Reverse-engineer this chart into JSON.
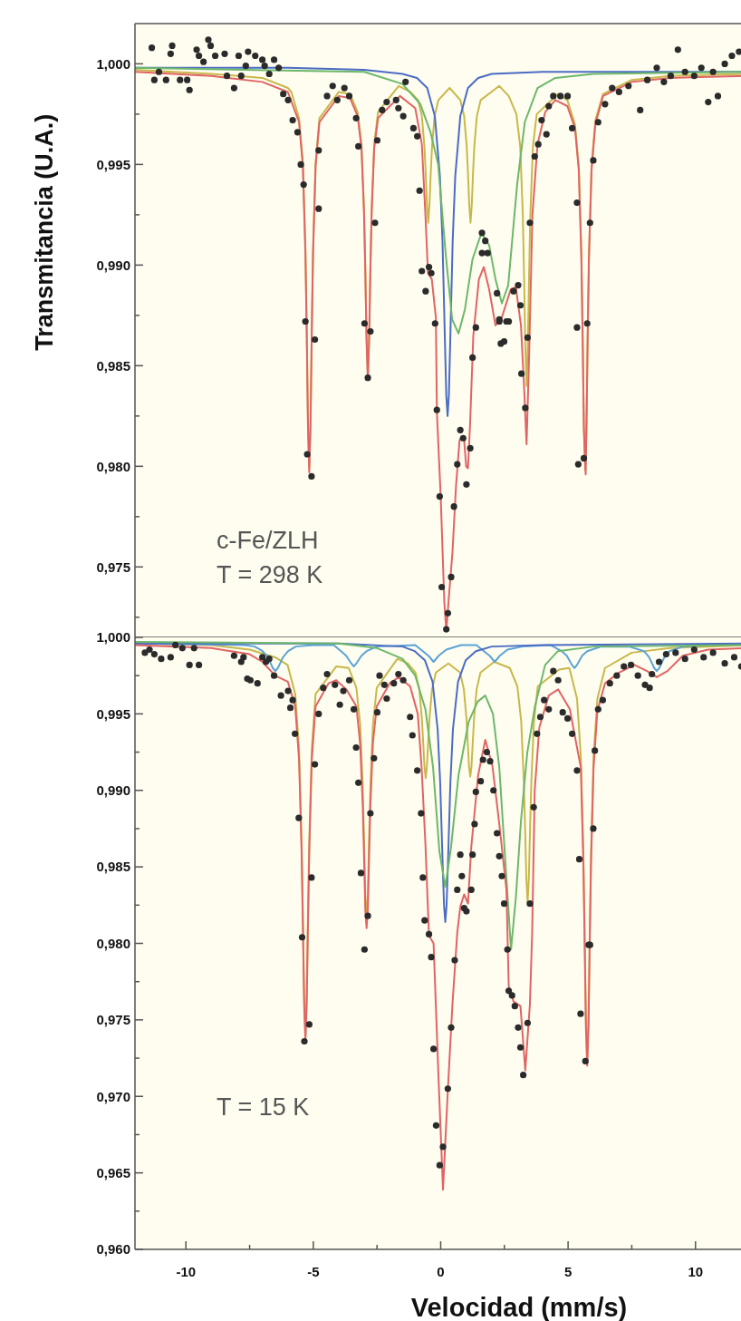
{
  "chart_data": [
    {
      "type": "line",
      "ylabel": "Transmitancia (U.A.)",
      "annotations": [
        "c-Fe/ZLH",
        "T = 298 K"
      ],
      "xlim": [
        -12,
        12
      ],
      "ylim": [
        0.9715,
        1.002
      ],
      "yticks": [
        {
          "value": 1.0,
          "label": "1,000"
        },
        {
          "value": 0.9975,
          "label": null
        },
        {
          "value": 0.995,
          "label": "0,995"
        },
        {
          "value": 0.9925,
          "label": null
        },
        {
          "value": 0.99,
          "label": "0,990"
        },
        {
          "value": 0.9875,
          "label": null
        },
        {
          "value": 0.985,
          "label": "0,985"
        },
        {
          "value": 0.9825,
          "label": null
        },
        {
          "value": 0.98,
          "label": "0,980"
        },
        {
          "value": 0.9775,
          "label": null
        },
        {
          "value": 0.975,
          "label": "0,975"
        },
        {
          "value": 0.9725,
          "label": null
        }
      ],
      "tick_labels": "y",
      "series": [
        {
          "type": "line",
          "color": "#c8b84a",
          "x": [
            -12,
            -9,
            -7,
            -6,
            -5.86,
            -5.56,
            -5.41,
            -5.31,
            -5.26,
            -5.21,
            -5.16,
            -5.11,
            -5.06,
            -5.01,
            -4.91,
            -4.76,
            -4.0,
            -3.56,
            -3.26,
            -3.11,
            -3.01,
            -2.96,
            -2.91,
            -2.86,
            -2.81,
            -2.76,
            -2.71,
            -2.61,
            -2.46,
            -1.65,
            -1.19,
            -0.89,
            -0.74,
            -0.64,
            -0.59,
            -0.54,
            -0.49,
            -0.44,
            -0.39,
            -0.34,
            -0.24,
            -0.09,
            0.35,
            0.77,
            0.92,
            1.02,
            1.07,
            1.12,
            1.17,
            1.22,
            1.27,
            1.32,
            1.42,
            1.57,
            2.3,
            2.67,
            2.97,
            3.12,
            3.22,
            3.27,
            3.32,
            3.37,
            3.42,
            3.47,
            3.52,
            3.62,
            3.77,
            4.6,
            4.97,
            5.27,
            5.42,
            5.52,
            5.57,
            5.62,
            5.67,
            5.72,
            5.77,
            5.82,
            5.92,
            6.07,
            6.37,
            7.5,
            9,
            12
          ],
          "values": [
            0.9997,
            0.9995,
            0.9993,
            0.9988,
            0.9986,
            0.9973,
            0.9951,
            0.9908,
            0.9869,
            0.9822,
            0.9799,
            0.9822,
            0.9869,
            0.9908,
            0.9951,
            0.9973,
            0.9986,
            0.9985,
            0.9976,
            0.996,
            0.9928,
            0.9899,
            0.9864,
            0.9845,
            0.9864,
            0.9899,
            0.9928,
            0.996,
            0.9976,
            0.9989,
            0.9986,
            0.9982,
            0.9974,
            0.9959,
            0.9946,
            0.993,
            0.9921,
            0.993,
            0.9946,
            0.9959,
            0.9974,
            0.9982,
            0.9988,
            0.9982,
            0.9974,
            0.9959,
            0.9946,
            0.993,
            0.9921,
            0.993,
            0.9946,
            0.9959,
            0.9974,
            0.9982,
            0.9989,
            0.9984,
            0.9975,
            0.9959,
            0.9926,
            0.9896,
            0.986,
            0.984,
            0.986,
            0.9896,
            0.9926,
            0.9959,
            0.9975,
            0.9985,
            0.9982,
            0.997,
            0.9949,
            0.9906,
            0.9867,
            0.982,
            0.9798,
            0.982,
            0.9867,
            0.9906,
            0.9949,
            0.9972,
            0.9985,
            0.9992,
            0.9994,
            0.9995
          ]
        },
        {
          "type": "line",
          "color": "#4b6cc4",
          "x": [
            -12,
            -6,
            -3,
            -1.5,
            -0.93,
            -0.53,
            -0.23,
            -0.03,
            0.07,
            0.17,
            0.22,
            0.27,
            0.32,
            0.37,
            0.47,
            0.57,
            0.77,
            1.07,
            1.47,
            2,
            4,
            8,
            12
          ],
          "values": [
            0.9998,
            0.9998,
            0.9997,
            0.9995,
            0.9993,
            0.9988,
            0.9974,
            0.9944,
            0.9912,
            0.986,
            0.9835,
            0.9825,
            0.9835,
            0.986,
            0.9912,
            0.9944,
            0.9974,
            0.9988,
            0.9993,
            0.9995,
            0.9996,
            0.9996,
            0.9996
          ]
        },
        {
          "type": "line",
          "color": "#6cb86a",
          "x": [
            -12,
            -3,
            -1.5,
            -0.8,
            -0.4,
            -0.1,
            0.2,
            0.45,
            0.7,
            0.95,
            1.25,
            1.6,
            1.9,
            2.15,
            2.4,
            2.65,
            3.0,
            3.3,
            3.8,
            4.5,
            6,
            12
          ],
          "values": [
            0.9998,
            0.9996,
            0.999,
            0.998,
            0.9966,
            0.995,
            0.9905,
            0.9873,
            0.9866,
            0.9878,
            0.9903,
            0.9916,
            0.991,
            0.9893,
            0.9881,
            0.989,
            0.994,
            0.9971,
            0.9988,
            0.9993,
            0.9995,
            0.9996
          ]
        },
        {
          "type": "line",
          "color": "#e06464",
          "x": [
            -12,
            -9,
            -7,
            -6,
            -5.56,
            -5.41,
            -5.31,
            -5.26,
            -5.21,
            -5.16,
            -5.11,
            -5.06,
            -5.01,
            -4.91,
            -4.76,
            -4.0,
            -3.56,
            -3.26,
            -3.11,
            -3.01,
            -2.96,
            -2.91,
            -2.86,
            -2.81,
            -2.76,
            -2.71,
            -2.61,
            -2.46,
            -1.6,
            -1.0,
            -0.74,
            -0.6,
            -0.5,
            -0.35,
            -0.19,
            -0.15,
            0.0,
            0.14,
            0.22,
            0.32,
            0.46,
            0.6,
            0.74,
            0.85,
            0.92,
            1.0,
            1.07,
            1.15,
            1.28,
            1.5,
            1.69,
            1.9,
            2.15,
            2.4,
            2.75,
            2.95,
            3.15,
            3.27,
            3.37,
            3.47,
            3.6,
            3.8,
            4.1,
            4.5,
            4.97,
            5.27,
            5.42,
            5.52,
            5.57,
            5.62,
            5.69,
            5.72,
            5.77,
            5.82,
            5.92,
            6.07,
            6.37,
            7.5,
            9,
            12
          ],
          "values": [
            0.9996,
            0.9994,
            0.9991,
            0.9986,
            0.9971,
            0.9949,
            0.9906,
            0.9867,
            0.982,
            0.9797,
            0.982,
            0.9867,
            0.9906,
            0.9949,
            0.9971,
            0.9984,
            0.9983,
            0.9974,
            0.9958,
            0.9926,
            0.9897,
            0.9862,
            0.9843,
            0.9862,
            0.9897,
            0.9926,
            0.9958,
            0.9973,
            0.9984,
            0.9978,
            0.996,
            0.9925,
            0.9896,
            0.9893,
            0.9874,
            0.9827,
            0.9785,
            0.9733,
            0.9718,
            0.9735,
            0.9757,
            0.979,
            0.9813,
            0.9815,
            0.9813,
            0.98,
            0.9799,
            0.982,
            0.9865,
            0.9893,
            0.9899,
            0.9888,
            0.987,
            0.9874,
            0.9888,
            0.9889,
            0.987,
            0.984,
            0.9811,
            0.9855,
            0.9925,
            0.996,
            0.9976,
            0.9982,
            0.9979,
            0.9968,
            0.9947,
            0.9904,
            0.9865,
            0.9818,
            0.9796,
            0.9818,
            0.9865,
            0.9904,
            0.9947,
            0.997,
            0.9984,
            0.9991,
            0.9993,
            0.9994
          ]
        },
        {
          "type": "scatter",
          "color": "#2b2b2b",
          "marker": "circle",
          "x": [
            -11.34,
            -11.06,
            -10.54,
            -10.6,
            -11.24,
            -10.78,
            -10.23,
            -9.86,
            -9.95,
            -9.58,
            -9.49,
            -9.12,
            -9.03,
            -9.31,
            -8.85,
            -8.48,
            -8.39,
            -8.11,
            -7.93,
            -7.83,
            -7.65,
            -7.56,
            -7.28,
            -7.0,
            -6.91,
            -6.54,
            -6.36,
            -6.73,
            -6.18,
            -5.99,
            -5.81,
            -5.62,
            -5.49,
            -5.38,
            -5.31,
            -4.94,
            -5.24,
            -5.07,
            -4.79,
            -4.79,
            -4.46,
            -4.24,
            -4.06,
            -3.78,
            -3.59,
            -3.32,
            -3.23,
            -2.58,
            -2.99,
            -2.76,
            -2.86,
            -2.49,
            -2.3,
            -2.12,
            -1.75,
            -1.66,
            -1.38,
            -1.47,
            -1.07,
            -0.92,
            -0.83,
            -0.74,
            -0.59,
            -0.46,
            -0.37,
            -0.22,
            -0.15,
            -0.04,
            0.04,
            0.28,
            0.22,
            0.41,
            0.52,
            0.65,
            0.77,
            0.88,
            1.01,
            1.16,
            1.25,
            1.38,
            2.36,
            2.49,
            2.3,
            2.67,
            3.17,
            3.32,
            3.41,
            5.35,
            5.75,
            5.4,
            5.62,
            1.62,
            1.75,
            1.84,
            1.62,
            2.21,
            2.3,
            2.58,
            2.86,
            3.04,
            3.13,
            3.5,
            3.69,
            3.83,
            3.96,
            4.15,
            4.24,
            4.42,
            4.7,
            4.98,
            5.16,
            5.35,
            5.86,
            5.99,
            6.18,
            6.45,
            6.73,
            7.0,
            7.37,
            7.83,
            8.11,
            8.48,
            8.76,
            9.03,
            9.31,
            9.59,
            9.95,
            10.23,
            10.5,
            10.69,
            10.88,
            11.15,
            11.43,
            11.71
          ],
          "values": [
            1.0008,
            0.9996,
            1.0009,
            1.0005,
            0.9992,
            0.9992,
            0.9992,
            0.9987,
            0.9992,
            1.0007,
            1.0004,
            1.0012,
            1.0009,
            1.0001,
            1.0004,
            1.0005,
            0.9994,
            0.9988,
            1.0004,
            0.9994,
            0.9999,
            1.0006,
            1.0004,
            1.0002,
            0.9999,
            1.0002,
            0.9998,
            0.9995,
            0.9985,
            0.9982,
            0.9972,
            0.9966,
            0.995,
            0.994,
            0.9872,
            0.9863,
            0.9806,
            0.9795,
            0.9957,
            0.9928,
            0.9984,
            0.9989,
            0.9982,
            0.9988,
            0.9984,
            0.9973,
            0.9959,
            0.9921,
            0.9871,
            0.9867,
            0.9844,
            0.9962,
            0.9977,
            0.9981,
            0.9982,
            0.9978,
            0.9991,
            0.9974,
            0.9968,
            0.9964,
            0.9937,
            0.9897,
            0.9887,
            0.9899,
            0.9896,
            0.9871,
            0.9828,
            0.9785,
            0.974,
            0.9727,
            0.9719,
            0.9745,
            0.978,
            0.9801,
            0.9818,
            0.9814,
            0.9791,
            0.9809,
            0.9854,
            0.9869,
            0.9861,
            0.9862,
            0.9872,
            0.9872,
            0.9846,
            0.9829,
            0.9864,
            0.9869,
            0.9871,
            0.9801,
            0.9804,
            0.9916,
            0.9912,
            0.9906,
            0.9906,
            0.9886,
            0.9873,
            0.9872,
            0.9887,
            0.989,
            0.988,
            0.9921,
            0.9954,
            0.996,
            0.9972,
            0.9965,
            0.9979,
            0.9984,
            0.9984,
            0.9984,
            0.9968,
            0.9931,
            0.9921,
            0.9952,
            0.9971,
            0.998,
            0.9988,
            0.9986,
            0.9989,
            0.9977,
            0.9992,
            0.9998,
            0.9991,
            0.9994,
            1.0007,
            0.9996,
            0.9994,
            0.9998,
            0.9981,
            0.9996,
            0.9984,
            1.0,
            1.0004,
            1.0006
          ]
        }
      ]
    },
    {
      "type": "line",
      "xlabel": "Velocidad (mm/s)",
      "annotations": [
        "T = 15 K"
      ],
      "xlim": [
        -12,
        12
      ],
      "ylim": [
        0.96,
        1.0
      ],
      "xticks": [
        -10,
        {
          "value": -7.5,
          "label": null
        },
        -5,
        {
          "value": -2.5,
          "label": null
        },
        0,
        {
          "value": 2.5,
          "label": null
        },
        5,
        {
          "value": 7.5,
          "label": null
        },
        10
      ],
      "yticks": [
        {
          "value": 1.0,
          "label": "1,000"
        },
        {
          "value": 0.9975,
          "label": null
        },
        {
          "value": 0.995,
          "label": "0,995"
        },
        {
          "value": 0.9925,
          "label": null
        },
        {
          "value": 0.99,
          "label": "0,990"
        },
        {
          "value": 0.9875,
          "label": null
        },
        {
          "value": 0.985,
          "label": "0,985"
        },
        {
          "value": 0.9825,
          "label": null
        },
        {
          "value": 0.98,
          "label": "0,980"
        },
        {
          "value": 0.9775,
          "label": null
        },
        {
          "value": 0.975,
          "label": "0,975"
        },
        {
          "value": 0.9725,
          "label": null
        },
        {
          "value": 0.97,
          "label": "0,970"
        },
        {
          "value": 0.9675,
          "label": null
        },
        {
          "value": 0.965,
          "label": "0,965"
        },
        {
          "value": 0.9625,
          "label": null
        },
        {
          "value": 0.96,
          "label": "0,960"
        }
      ],
      "series": [
        {
          "type": "line",
          "color": "#c8b84a",
          "x": [
            -12,
            -9,
            -7.5,
            -6.5,
            -6.01,
            -5.71,
            -5.56,
            -5.46,
            -5.41,
            -5.36,
            -5.31,
            -5.26,
            -5.21,
            -5.16,
            -5.06,
            -4.91,
            -4.1,
            -3.61,
            -3.31,
            -3.16,
            -3.06,
            -3.01,
            -2.96,
            -2.91,
            -2.86,
            -2.81,
            -2.76,
            -2.66,
            -2.51,
            -1.7,
            -1.29,
            -0.99,
            -0.84,
            -0.74,
            -0.69,
            -0.64,
            -0.59,
            -0.54,
            -0.49,
            -0.44,
            -0.34,
            -0.19,
            0.3,
            0.76,
            0.91,
            1.01,
            1.06,
            1.11,
            1.16,
            1.21,
            1.26,
            1.31,
            1.41,
            1.56,
            2.1,
            2.71,
            3.01,
            3.16,
            3.26,
            3.31,
            3.36,
            3.41,
            3.46,
            3.51,
            3.56,
            3.66,
            3.81,
            4.65,
            5.05,
            5.35,
            5.5,
            5.6,
            5.65,
            5.7,
            5.75,
            5.8,
            5.85,
            5.9,
            6.0,
            6.15,
            6.45,
            7.5,
            9,
            12
          ],
          "values": [
            0.9996,
            0.9995,
            0.9992,
            0.9987,
            0.9982,
            0.9963,
            0.9927,
            0.9866,
            0.9818,
            0.9765,
            0.974,
            0.9765,
            0.9818,
            0.9866,
            0.9927,
            0.9963,
            0.9981,
            0.998,
            0.9967,
            0.9943,
            0.9902,
            0.9869,
            0.9832,
            0.9815,
            0.9832,
            0.9869,
            0.9902,
            0.9943,
            0.9967,
            0.9986,
            0.9983,
            0.9977,
            0.9966,
            0.9947,
            0.9932,
            0.9916,
            0.9908,
            0.9916,
            0.9932,
            0.9947,
            0.9966,
            0.9977,
            0.9983,
            0.9977,
            0.9966,
            0.9947,
            0.9932,
            0.9916,
            0.9909,
            0.9916,
            0.9932,
            0.9947,
            0.9966,
            0.9977,
            0.9984,
            0.998,
            0.9968,
            0.9945,
            0.9907,
            0.9877,
            0.9843,
            0.9827,
            0.9843,
            0.9877,
            0.9907,
            0.9945,
            0.9968,
            0.9979,
            0.998,
            0.996,
            0.9922,
            0.9858,
            0.9806,
            0.975,
            0.9723,
            0.975,
            0.9806,
            0.9858,
            0.9922,
            0.996,
            0.998,
            0.999,
            0.9993,
            0.9995
          ]
        },
        {
          "type": "line",
          "color": "#5ba3d6",
          "x": [
            -12,
            -7.7,
            -7.3,
            -6.99,
            -6.79,
            -6.59,
            -6.49,
            -6.39,
            -6.19,
            -5.99,
            -5.69,
            -5.0,
            -4.2,
            -3.91,
            -3.71,
            -3.51,
            -3.41,
            -3.31,
            -3.11,
            -2.91,
            -2.5,
            -1.0,
            -0.78,
            -0.48,
            -0.28,
            -0.08,
            0.22,
            0.8,
            1.4,
            1.62,
            1.92,
            2.12,
            2.32,
            2.62,
            3.2,
            4.3,
            4.75,
            4.95,
            5.15,
            5.25,
            5.35,
            5.55,
            5.75,
            6.3,
            7.4,
            7.98,
            8.18,
            8.38,
            8.48,
            8.58,
            8.78,
            8.98,
            9.5,
            12
          ],
          "values": [
            0.9996,
            0.9995,
            0.9994,
            0.9991,
            0.9987,
            0.998,
            0.9978,
            0.998,
            0.9987,
            0.9991,
            0.9994,
            0.9995,
            0.9995,
            0.9991,
            0.9988,
            0.9983,
            0.9981,
            0.9983,
            0.9988,
            0.9991,
            0.9994,
            0.9995,
            0.9992,
            0.9988,
            0.9984,
            0.9988,
            0.9992,
            0.9995,
            0.9995,
            0.9992,
            0.9988,
            0.9984,
            0.9988,
            0.9992,
            0.9994,
            0.9995,
            0.9991,
            0.9988,
            0.9982,
            0.998,
            0.9982,
            0.9988,
            0.9991,
            0.9994,
            0.9994,
            0.9991,
            0.9987,
            0.998,
            0.9978,
            0.998,
            0.9987,
            0.9991,
            0.9994,
            0.9996
          ]
        },
        {
          "type": "line",
          "color": "#4b6cc4",
          "x": [
            -12,
            -4,
            -1.5,
            -1.02,
            -0.62,
            -0.32,
            -0.12,
            -0.02,
            0.08,
            0.13,
            0.18,
            0.23,
            0.28,
            0.38,
            0.48,
            0.68,
            0.98,
            1.38,
            2,
            4,
            12
          ],
          "values": [
            0.9996,
            0.9996,
            0.9994,
            0.9991,
            0.9985,
            0.9971,
            0.994,
            0.9905,
            0.985,
            0.9825,
            0.9814,
            0.9825,
            0.985,
            0.9905,
            0.994,
            0.9971,
            0.9985,
            0.9991,
            0.9994,
            0.9995,
            0.9996
          ]
        },
        {
          "type": "line",
          "color": "#6cb86a",
          "x": [
            -12,
            -4,
            -2.5,
            -1.5,
            -1.0,
            -0.6,
            -0.3,
            -0.05,
            0.18,
            0.4,
            0.7,
            1.1,
            1.45,
            1.75,
            2.05,
            2.3,
            2.55,
            2.76,
            2.95,
            3.15,
            3.4,
            3.7,
            4.1,
            4.6,
            6,
            12
          ],
          "values": [
            0.9997,
            0.9996,
            0.9993,
            0.9986,
            0.9975,
            0.9953,
            0.9915,
            0.986,
            0.9837,
            0.9862,
            0.991,
            0.9945,
            0.9958,
            0.9962,
            0.995,
            0.9915,
            0.985,
            0.9796,
            0.983,
            0.988,
            0.9925,
            0.9955,
            0.9982,
            0.9991,
            0.9994,
            0.9995
          ]
        },
        {
          "type": "line",
          "color": "#e06464",
          "x": [
            -12,
            -9,
            -7.5,
            -7,
            -6.5,
            -6.0,
            -5.71,
            -5.56,
            -5.46,
            -5.41,
            -5.36,
            -5.31,
            -5.26,
            -5.21,
            -5.16,
            -5.06,
            -4.91,
            -4.4,
            -4.1,
            -3.7,
            -3.31,
            -3.16,
            -3.06,
            -3.01,
            -2.96,
            -2.91,
            -2.86,
            -2.81,
            -2.76,
            -2.66,
            -2.51,
            -2.0,
            -1.65,
            -1.2,
            -0.9,
            -0.75,
            -0.6,
            -0.46,
            -0.28,
            -0.09,
            0.09,
            0.28,
            0.46,
            0.65,
            0.77,
            0.92,
            1.07,
            1.2,
            1.47,
            1.75,
            2.03,
            2.3,
            2.58,
            2.67,
            2.86,
            3.13,
            3.32,
            3.5,
            3.59,
            3.69,
            3.87,
            4.24,
            4.61,
            5.07,
            5.35,
            5.5,
            5.6,
            5.65,
            5.7,
            5.75,
            5.8,
            5.85,
            5.9,
            6.0,
            6.15,
            6.45,
            7.0,
            7.6,
            8.1,
            8.48,
            8.9,
            9.5,
            10.5,
            12
          ],
          "values": [
            0.9995,
            0.9993,
            0.9989,
            0.9984,
            0.9975,
            0.9971,
            0.9955,
            0.992,
            0.986,
            0.9812,
            0.976,
            0.9736,
            0.976,
            0.9812,
            0.986,
            0.992,
            0.9955,
            0.997,
            0.9972,
            0.9966,
            0.9955,
            0.993,
            0.989,
            0.9857,
            0.9822,
            0.981,
            0.9822,
            0.9857,
            0.989,
            0.9931,
            0.9955,
            0.997,
            0.9974,
            0.9968,
            0.995,
            0.9915,
            0.9865,
            0.9805,
            0.98,
            0.9714,
            0.9639,
            0.9704,
            0.976,
            0.9807,
            0.9824,
            0.9832,
            0.9826,
            0.9863,
            0.991,
            0.9933,
            0.9916,
            0.9878,
            0.9835,
            0.9772,
            0.9762,
            0.9759,
            0.9717,
            0.976,
            0.9807,
            0.99,
            0.9941,
            0.9962,
            0.9966,
            0.9953,
            0.9928,
            0.9915,
            0.9852,
            0.98,
            0.9745,
            0.972,
            0.9745,
            0.98,
            0.9852,
            0.9915,
            0.9952,
            0.997,
            0.9977,
            0.9982,
            0.9978,
            0.9974,
            0.9978,
            0.9988,
            0.9992,
            0.9993
          ]
        },
        {
          "type": "scatter",
          "color": "#2b2b2b",
          "marker": "circle",
          "x": [
            -11.61,
            -11.43,
            -11.24,
            -10.97,
            -10.6,
            -10.41,
            -10.14,
            -9.86,
            -9.68,
            -9.49,
            -8.11,
            -7.83,
            -7.74,
            -7.59,
            -7.47,
            -7.19,
            -7.0,
            -6.86,
            -6.73,
            -6.54,
            -6.27,
            -5.99,
            -5.9,
            -5.81,
            -5.72,
            -5.57,
            -5.44,
            -5.16,
            -5.35,
            -5.07,
            -4.94,
            -4.79,
            -4.61,
            -4.46,
            -4.15,
            -3.96,
            -3.82,
            -3.59,
            -3.41,
            -3.32,
            -3.23,
            -3.13,
            -2.99,
            -2.86,
            -2.76,
            -2.62,
            -2.49,
            -2.4,
            -2.21,
            -2.12,
            -1.84,
            -1.66,
            -1.47,
            -1.2,
            -1.11,
            -0.92,
            -0.77,
            -0.7,
            -0.63,
            -0.46,
            -0.37,
            -0.28,
            -0.18,
            -0.04,
            0.09,
            0.28,
            0.41,
            0.55,
            0.65,
            0.77,
            0.83,
            0.92,
            1.01,
            1.2,
            1.25,
            1.33,
            1.38,
            1.57,
            1.66,
            1.81,
            1.94,
            2.07,
            2.21,
            2.3,
            2.4,
            2.49,
            2.62,
            2.67,
            2.8,
            2.91,
            3.04,
            3.13,
            3.24,
            3.41,
            3.5,
            3.65,
            3.78,
            3.91,
            4.06,
            4.24,
            4.42,
            4.61,
            4.79,
            4.98,
            5.16,
            5.35,
            5.44,
            5.81,
            5.49,
            5.86,
            5.68,
            5.99,
            6.05,
            6.18,
            6.36,
            6.64,
            6.91,
            7.19,
            7.47,
            7.74,
            8.02,
            8.2,
            8.29,
            8.57,
            8.85,
            9.22,
            9.59,
            9.95,
            10.32,
            10.69,
            11.15,
            11.52,
            11.8
          ],
          "values": [
            0.999,
            0.9992,
            0.9989,
            0.9986,
            0.9987,
            0.9995,
            0.9993,
            0.9982,
            0.9993,
            0.9982,
            0.9988,
            0.9984,
            0.9987,
            0.9973,
            0.9972,
            0.997,
            0.9987,
            0.9984,
            0.9986,
            0.9975,
            0.9962,
            0.9965,
            0.9954,
            0.9959,
            0.9937,
            0.9882,
            0.9804,
            0.9747,
            0.9736,
            0.9843,
            0.9917,
            0.995,
            0.9967,
            0.9976,
            0.9969,
            0.9956,
            0.9965,
            0.9972,
            0.9953,
            0.9928,
            0.9905,
            0.9846,
            0.9796,
            0.9818,
            0.9885,
            0.9921,
            0.9951,
            0.9975,
            0.9969,
            0.996,
            0.997,
            0.9976,
            0.9972,
            0.9948,
            0.9936,
            0.9913,
            0.9885,
            0.9843,
            0.9815,
            0.9806,
            0.9791,
            0.9731,
            0.9681,
            0.9655,
            0.9667,
            0.9705,
            0.9745,
            0.9789,
            0.9835,
            0.9858,
            0.9844,
            0.9823,
            0.9821,
            0.9835,
            0.9858,
            0.9878,
            0.9899,
            0.9906,
            0.992,
            0.9925,
            0.9919,
            0.99,
            0.9872,
            0.9857,
            0.9844,
            0.9826,
            0.9796,
            0.9769,
            0.9766,
            0.9759,
            0.9745,
            0.9732,
            0.9714,
            0.9748,
            0.9826,
            0.9889,
            0.9937,
            0.9948,
            0.9959,
            0.9953,
            0.9978,
            0.9972,
            0.9951,
            0.9947,
            0.9937,
            0.9913,
            0.9855,
            0.9799,
            0.9754,
            0.9799,
            0.9723,
            0.9875,
            0.9926,
            0.9953,
            0.9959,
            0.997,
            0.9975,
            0.9981,
            0.9982,
            0.9975,
            0.9969,
            0.9967,
            0.9976,
            0.9984,
            0.9989,
            0.999,
            0.9986,
            0.9992,
            0.9987,
            0.999,
            0.9983,
            0.9987,
            0.9981
          ]
        }
      ]
    }
  ]
}
